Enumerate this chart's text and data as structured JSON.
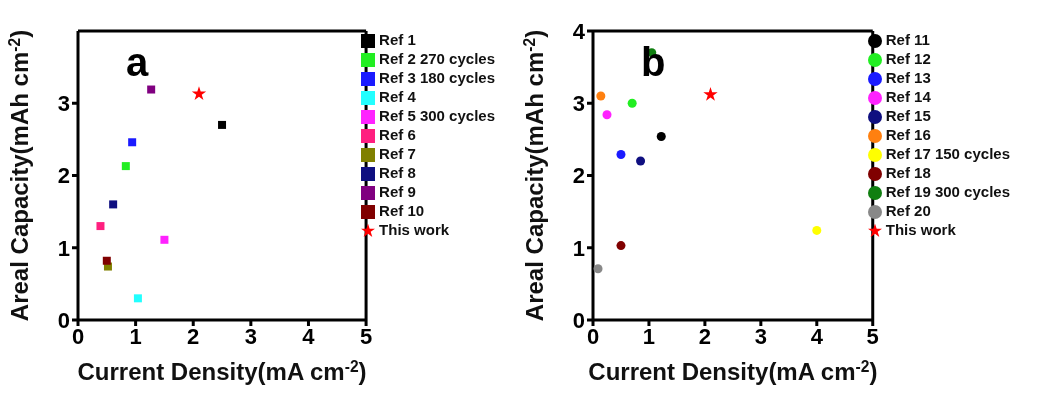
{
  "chart_data": [
    {
      "type": "scatter",
      "xlabel": "Current Density(mA cm$^{-2}$)",
      "ylabel": "Areal Capacity(mAh cm$^{-2}$)",
      "annotations": [
        "a"
      ],
      "xlim": [
        0,
        5
      ],
      "ylim": [
        0,
        4
      ],
      "xticks": [
        0,
        1,
        2,
        3,
        4,
        5
      ],
      "yticks": [
        0,
        1,
        2,
        3
      ],
      "legend": "top right",
      "marker": "square",
      "series": [
        {
          "name": "Ref 1",
          "color": "#000000",
          "x": [
            2.5
          ],
          "values": [
            2.7
          ]
        },
        {
          "name": "Ref 2 270 cycles",
          "color": "#22ee22",
          "x": [
            0.83
          ],
          "values": [
            2.13
          ]
        },
        {
          "name": "Ref 3 180 cycles",
          "color": "#1a1aff",
          "x": [
            0.94
          ],
          "values": [
            2.46
          ]
        },
        {
          "name": "Ref 4",
          "color": "#22ffff",
          "x": [
            1.04
          ],
          "values": [
            0.3
          ]
        },
        {
          "name": "Ref 5 300 cycles",
          "color": "#ff22ff",
          "x": [
            1.5
          ],
          "values": [
            1.11
          ]
        },
        {
          "name": "Ref 6",
          "color": "#ff1f7f",
          "x": [
            0.39
          ],
          "values": [
            1.3
          ]
        },
        {
          "name": "Ref 7",
          "color": "#808000",
          "x": [
            0.52
          ],
          "values": [
            0.74
          ]
        },
        {
          "name": "Ref 8",
          "color": "#0f0f80",
          "x": [
            0.61
          ],
          "values": [
            1.6
          ]
        },
        {
          "name": "Ref 9",
          "color": "#800080",
          "x": [
            1.27
          ],
          "values": [
            3.19
          ]
        },
        {
          "name": "Ref 10",
          "color": "#800000",
          "x": [
            0.5
          ],
          "values": [
            0.82
          ]
        },
        {
          "name": "This work",
          "color": "#ff0000",
          "marker": "star",
          "x": [
            2.1
          ],
          "values": [
            3.13
          ]
        }
      ]
    },
    {
      "type": "scatter",
      "xlabel": "Current Density(mA cm$^{-2}$)",
      "ylabel": "Areal Capacity(mAh cm$^{-2}$)",
      "annotations": [
        "b"
      ],
      "xlim": [
        0,
        5
      ],
      "ylim": [
        0,
        4
      ],
      "xticks": [
        0,
        1,
        2,
        3,
        4,
        5
      ],
      "yticks": [
        0,
        1,
        2,
        3,
        4
      ],
      "legend": "top right",
      "marker": "circle",
      "series": [
        {
          "name": "Ref 11",
          "color": "#000000",
          "x": [
            1.22
          ],
          "values": [
            2.54
          ]
        },
        {
          "name": "Ref 12",
          "color": "#22ee22",
          "x": [
            0.7
          ],
          "values": [
            3.0
          ]
        },
        {
          "name": "Ref 13",
          "color": "#1a1aff",
          "x": [
            0.5
          ],
          "values": [
            2.29
          ]
        },
        {
          "name": "Ref 14",
          "color": "#ff22ff",
          "x": [
            0.25
          ],
          "values": [
            2.84
          ]
        },
        {
          "name": "Ref 15",
          "color": "#0f0f80",
          "x": [
            0.85
          ],
          "values": [
            2.2
          ]
        },
        {
          "name": "Ref 16",
          "color": "#ff8010",
          "x": [
            0.14
          ],
          "values": [
            3.1
          ]
        },
        {
          "name": "Ref 17 150 cycles",
          "color": "#ffff00",
          "x": [
            4.0
          ],
          "values": [
            1.24
          ]
        },
        {
          "name": "Ref 18",
          "color": "#800000",
          "x": [
            0.5
          ],
          "values": [
            1.03
          ]
        },
        {
          "name": "Ref 19 300 cycles",
          "color": "#107f10",
          "x": [
            1.05
          ],
          "values": [
            3.7
          ]
        },
        {
          "name": "Ref 20",
          "color": "#888888",
          "x": [
            0.09
          ],
          "values": [
            0.71
          ]
        },
        {
          "name": "This work",
          "color": "#ff0000",
          "marker": "star",
          "x": [
            2.1
          ],
          "values": [
            3.12
          ]
        }
      ]
    }
  ]
}
